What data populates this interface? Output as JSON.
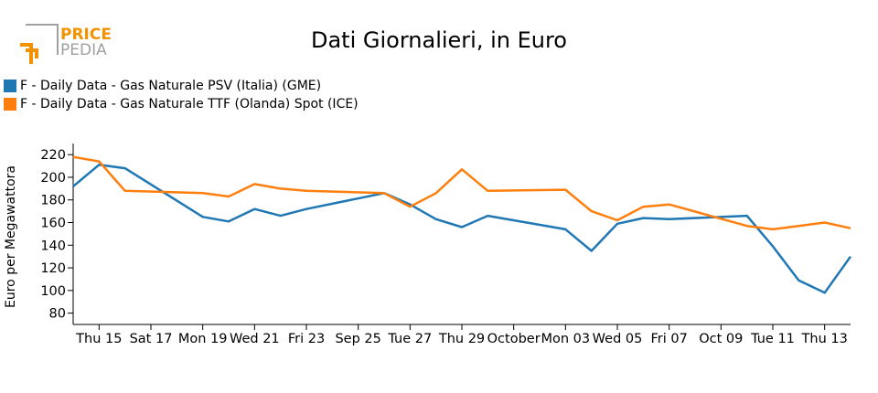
{
  "logo": {
    "word1": "PRICE",
    "word2": "PEDIA",
    "accent": "#f39200",
    "gray": "#a0a0a0"
  },
  "chart_data": {
    "type": "line",
    "title": "Dati Giornalieri, in Euro",
    "ylabel": "Euro per Megawattora",
    "xlabel": "",
    "ylim": [
      70,
      225
    ],
    "yticks": [
      80,
      100,
      120,
      140,
      160,
      180,
      200,
      220
    ],
    "x": [
      "2022-09-14",
      "2022-09-15",
      "2022-09-16",
      "2022-09-19",
      "2022-09-20",
      "2022-09-21",
      "2022-09-22",
      "2022-09-23",
      "2022-09-26",
      "2022-09-27",
      "2022-09-28",
      "2022-09-29",
      "2022-09-30",
      "2022-10-03",
      "2022-10-04",
      "2022-10-05",
      "2022-10-06",
      "2022-10-07",
      "2022-10-10",
      "2022-10-11",
      "2022-10-12",
      "2022-10-13",
      "2022-10-14"
    ],
    "x_ticks": [
      {
        "date": "2022-09-15",
        "label": "Thu 15"
      },
      {
        "date": "2022-09-17",
        "label": "Sat 17"
      },
      {
        "date": "2022-09-19",
        "label": "Mon 19"
      },
      {
        "date": "2022-09-21",
        "label": "Wed 21"
      },
      {
        "date": "2022-09-23",
        "label": "Fri 23"
      },
      {
        "date": "2022-09-25",
        "label": "Sep 25"
      },
      {
        "date": "2022-09-27",
        "label": "Tue 27"
      },
      {
        "date": "2022-09-29",
        "label": "Thu 29"
      },
      {
        "date": "2022-10-01",
        "label": "October"
      },
      {
        "date": "2022-10-03",
        "label": "Mon 03"
      },
      {
        "date": "2022-10-05",
        "label": "Wed 05"
      },
      {
        "date": "2022-10-07",
        "label": "Fri 07"
      },
      {
        "date": "2022-10-09",
        "label": "Oct 09"
      },
      {
        "date": "2022-10-11",
        "label": "Tue 11"
      },
      {
        "date": "2022-10-13",
        "label": "Thu 13"
      }
    ],
    "series": [
      {
        "name": "F - Daily Data - Gas Naturale PSV (Italia) (GME)",
        "color": "#1f77b4",
        "values": [
          192,
          211,
          208,
          165,
          161,
          172,
          166,
          172,
          186,
          176,
          163,
          156,
          166,
          154,
          135,
          159,
          164,
          163,
          166,
          139,
          109,
          98,
          130
        ]
      },
      {
        "name": "F - Daily Data - Gas Naturale TTF (Olanda) Spot (ICE)",
        "color": "#ff7f0e",
        "values": [
          218,
          214,
          188,
          186,
          183,
          194,
          190,
          188,
          186,
          174,
          186,
          207,
          188,
          189,
          170,
          162,
          174,
          176,
          157,
          154,
          157,
          160,
          155
        ]
      }
    ]
  }
}
